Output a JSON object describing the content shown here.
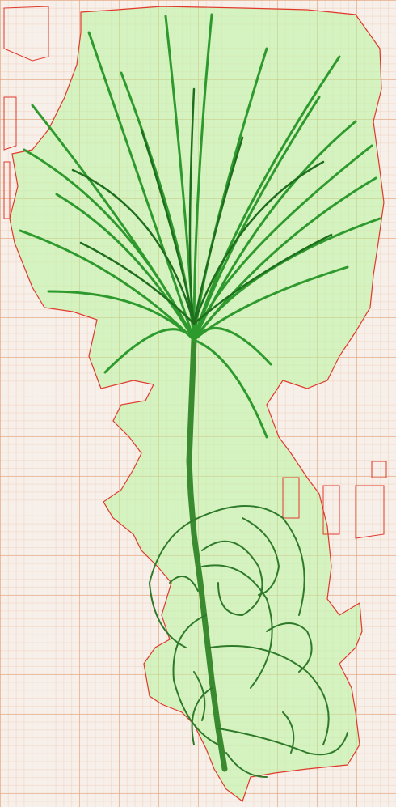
{
  "scene": {
    "subject": "seedling-with-roots",
    "background": "graph-paper",
    "colors": {
      "paper": "#f7efe9",
      "grid_major": "#e2a078",
      "mask_fill": "#b8f5a0",
      "mask_outline": "#e0392b",
      "needle": "#2e9a2e",
      "needle_dark": "#1e6e1e",
      "stem": "#3a8a30",
      "root": "#2f7a2a"
    }
  }
}
